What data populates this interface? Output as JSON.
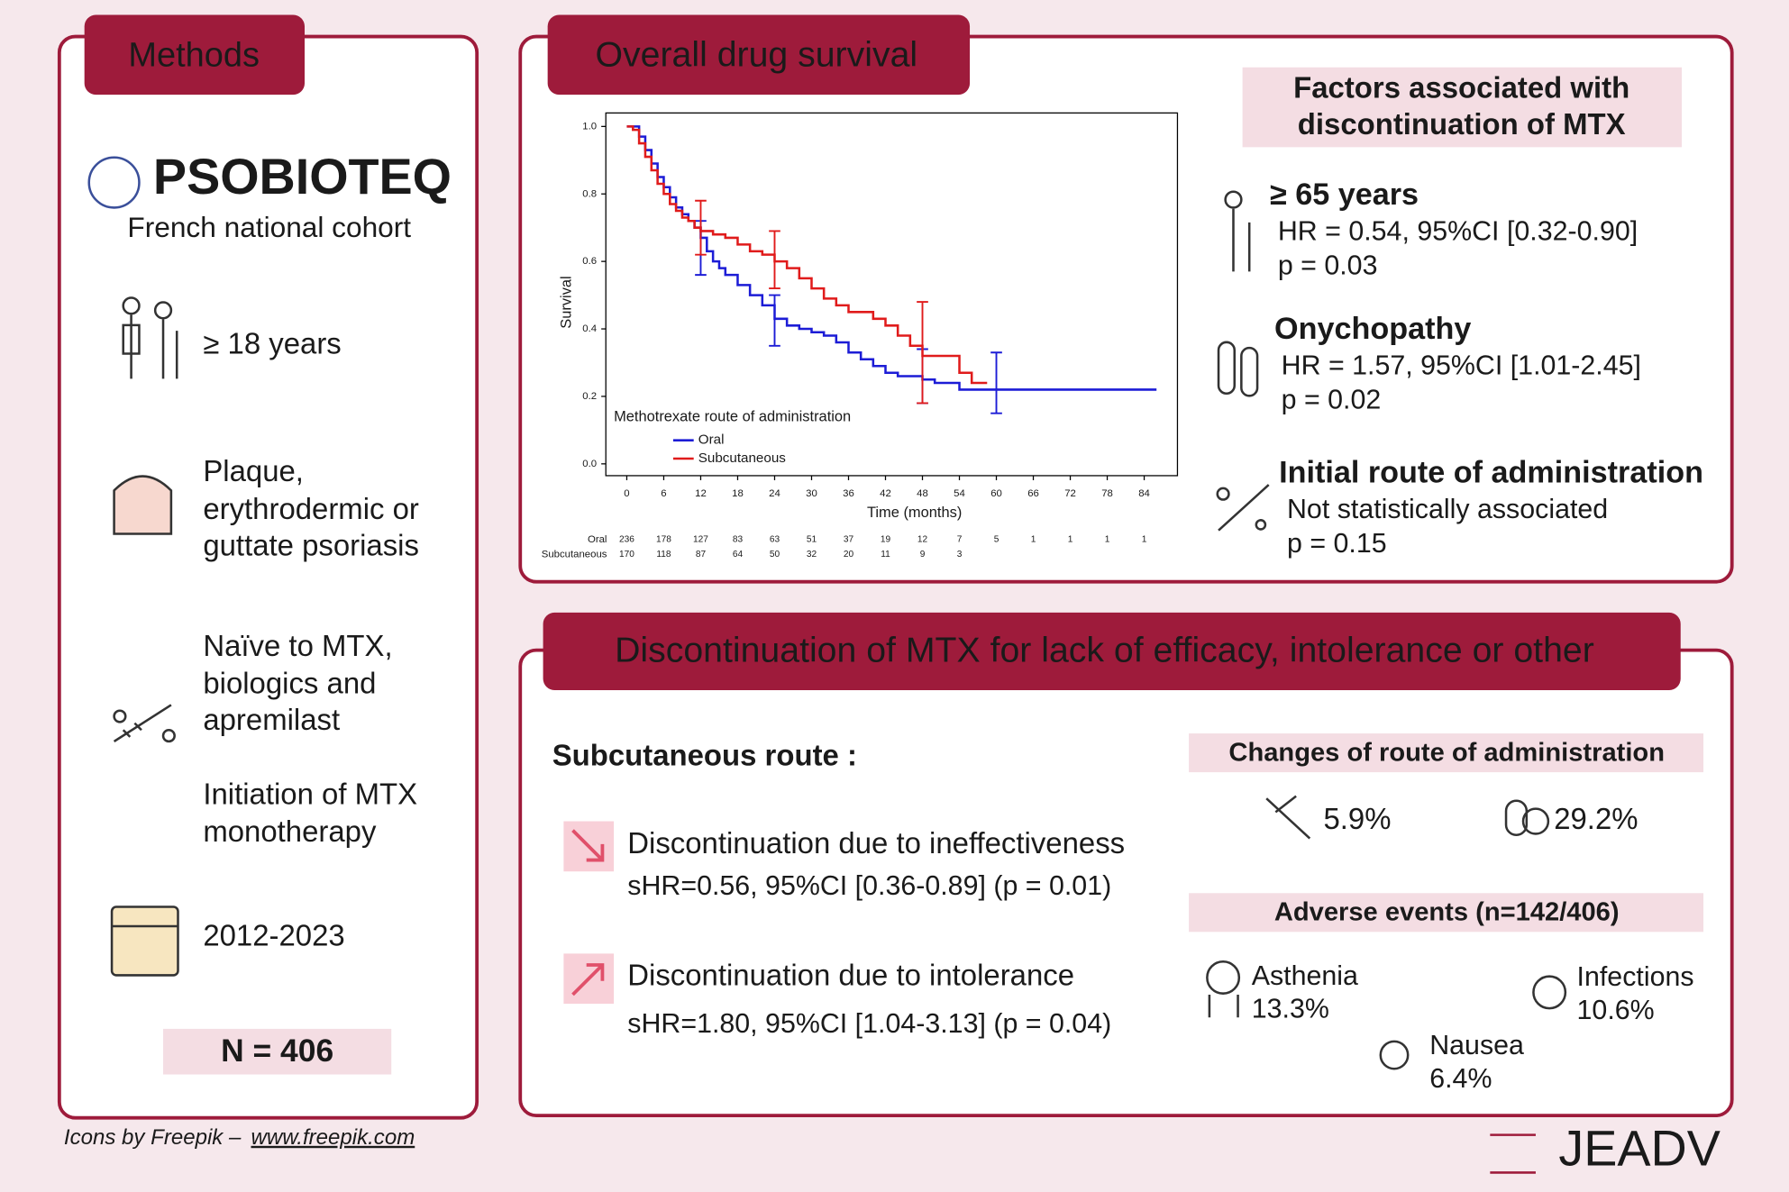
{
  "methods": {
    "title": "Methods",
    "logo": "PSOBIOTEQ",
    "cohort": "French national cohort",
    "criteria": [
      [
        "≥ 18 years"
      ],
      [
        "Plaque,",
        "erythrodermic or",
        "guttate psoriasis"
      ],
      [
        "Naïve to MTX,",
        "biologics and",
        "apremilast"
      ],
      [
        "Initiation of MTX",
        "monotherapy"
      ],
      [
        "2012-2023"
      ]
    ],
    "n": "N = 406"
  },
  "credit": {
    "text": "Icons by Freepik –",
    "link": "www.freepik.com"
  },
  "survival": {
    "title": "Overall drug survival",
    "factors_title": [
      "Factors associated with",
      "discontinuation of MTX"
    ],
    "factors": [
      {
        "label": "≥ 65 years",
        "lines": [
          "HR = 0.54, 95%CI [0.32-0.90]",
          "p = 0.03"
        ]
      },
      {
        "label": "Onychopathy",
        "lines": [
          "HR = 1.57, 95%CI [1.01-2.45]",
          "p = 0.02"
        ]
      },
      {
        "label": "Initial route of administration",
        "lines": [
          "Not statistically associated",
          "p = 0.15"
        ]
      }
    ]
  },
  "chart_data": {
    "type": "line",
    "y_label": "Survival",
    "x_label": "Time (months)",
    "legend_title": "Methotrexate route of administration",
    "xlim": [
      -3.4,
      89.4
    ],
    "ylim": [
      -0.035,
      1.04
    ],
    "xticks": [
      0,
      6,
      12,
      18,
      24,
      30,
      36,
      42,
      48,
      54,
      60,
      66,
      72,
      78,
      84
    ],
    "yticks": [
      {
        "value": 0,
        "label": "0.0"
      },
      0.2,
      0.4,
      0.6,
      0.8,
      {
        "value": 1,
        "label": "1.0"
      }
    ],
    "series": [
      {
        "name": "Oral",
        "color": "#1c1cd6",
        "x": [
          0,
          1,
          2,
          3,
          4,
          5,
          6,
          7,
          8,
          9,
          10,
          11,
          12,
          13,
          14,
          15,
          16,
          18,
          20,
          22,
          24,
          26,
          28,
          30,
          32,
          34,
          36,
          38,
          40,
          42,
          44,
          48,
          50,
          54,
          86
        ],
        "values": [
          1.0,
          1.0,
          0.97,
          0.93,
          0.89,
          0.85,
          0.82,
          0.79,
          0.76,
          0.74,
          0.72,
          0.7,
          0.67,
          0.63,
          0.6,
          0.58,
          0.56,
          0.53,
          0.5,
          0.47,
          0.43,
          0.41,
          0.4,
          0.39,
          0.38,
          0.36,
          0.33,
          0.31,
          0.29,
          0.27,
          0.26,
          0.25,
          0.24,
          0.22,
          0.22
        ],
        "ci": {
          "x": [
            12,
            24,
            48,
            60
          ],
          "lower": [
            0.56,
            0.35,
            0.18,
            0.15
          ],
          "upper": [
            0.72,
            0.5,
            0.34,
            0.33
          ]
        }
      },
      {
        "name": "Subcutaneous",
        "color": "#e01b1b",
        "x": [
          0,
          1,
          2,
          3,
          4,
          5,
          6,
          7,
          8,
          9,
          10,
          11,
          12,
          14,
          16,
          18,
          20,
          22,
          24,
          26,
          28,
          30,
          32,
          34,
          36,
          40,
          42,
          44,
          46,
          48,
          54,
          56,
          58.5
        ],
        "values": [
          1.0,
          0.99,
          0.95,
          0.91,
          0.87,
          0.83,
          0.8,
          0.77,
          0.75,
          0.73,
          0.72,
          0.7,
          0.69,
          0.68,
          0.67,
          0.65,
          0.63,
          0.62,
          0.6,
          0.58,
          0.55,
          0.52,
          0.49,
          0.47,
          0.45,
          0.43,
          0.41,
          0.38,
          0.35,
          0.32,
          0.27,
          0.24,
          0.24
        ],
        "ci": {
          "x": [
            12,
            24,
            48
          ],
          "lower": [
            0.62,
            0.52,
            0.18
          ],
          "upper": [
            0.78,
            0.69,
            0.48
          ]
        }
      }
    ],
    "risk_table": [
      {
        "name": "Oral",
        "color": "#1c1cd6",
        "values": [
          236,
          178,
          127,
          83,
          63,
          51,
          37,
          19,
          12,
          7,
          5,
          1,
          1,
          1,
          1
        ]
      },
      {
        "name": "Subcutaneous",
        "color": "#e01b1b",
        "values": [
          170,
          118,
          87,
          64,
          50,
          32,
          20,
          11,
          9,
          3
        ]
      }
    ]
  },
  "discontinuation": {
    "title": "Discontinuation of MTX for lack of efficacy, intolerance or other",
    "route": "Subcutaneous route :",
    "items": [
      {
        "label": "Discontinuation due to ineffectiveness",
        "stat": "sHR=0.56, 95%CI [0.36-0.89] (p = 0.01)"
      },
      {
        "label": "Discontinuation due to intolerance",
        "stat": "sHR=1.80, 95%CI [1.04-3.13] (p = 0.04)"
      }
    ],
    "changes_title": "Changes of route of administration",
    "changes": [
      "5.9%",
      "29.2%"
    ],
    "adverse_title": "Adverse events (n=142/406)",
    "adverse": [
      {
        "name": "Asthenia",
        "value": "13.3%"
      },
      {
        "name": "Infections",
        "value": "10.6%"
      },
      {
        "name": "Nausea",
        "value": "6.4%"
      }
    ]
  },
  "publisher": "JEADV"
}
